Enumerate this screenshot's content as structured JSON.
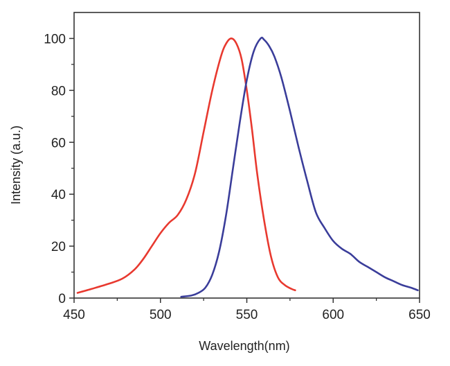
{
  "chart_data": {
    "type": "line",
    "title": "",
    "xlabel": "Wavelength(nm)",
    "ylabel": "Intensity (a.u.)",
    "xlim": [
      450,
      650
    ],
    "ylim": [
      0,
      110
    ],
    "x_ticks": [
      450,
      500,
      550,
      600,
      650
    ],
    "y_ticks": [
      0,
      20,
      40,
      60,
      80,
      100
    ],
    "x_tick_labels": [
      "450",
      "500",
      "550",
      "600",
      "650"
    ],
    "y_tick_labels": [
      "0",
      "20",
      "40",
      "60",
      "80",
      "100"
    ],
    "grid": false,
    "legend": "none",
    "series": [
      {
        "color": "#e8392f",
        "x": [
          452,
          460,
          470,
          478,
          485,
          490,
          495,
          500,
          505,
          510,
          515,
          520,
          525,
          530,
          535,
          538,
          541,
          544,
          547,
          550,
          553,
          556,
          560,
          564,
          568,
          572,
          576,
          578
        ],
        "y": [
          2,
          3.5,
          5.5,
          7.5,
          11,
          15,
          20,
          25,
          29,
          32,
          38,
          48,
          64,
          80,
          93,
          98,
          100,
          98,
          92,
          80,
          65,
          48,
          30,
          16,
          8,
          5,
          3.5,
          3
        ]
      },
      {
        "color": "#3a3d9a",
        "x": [
          512,
          518,
          522,
          526,
          530,
          534,
          538,
          542,
          546,
          550,
          554,
          558,
          560,
          563,
          566,
          570,
          575,
          580,
          585,
          590,
          595,
          600,
          605,
          610,
          615,
          620,
          625,
          630,
          635,
          640,
          645,
          649
        ],
        "y": [
          0.5,
          1,
          2,
          4,
          9,
          18,
          32,
          50,
          68,
          84,
          95,
          100,
          99.5,
          97,
          93,
          85,
          72,
          58,
          45,
          33,
          27,
          22,
          19,
          17,
          14,
          12,
          10,
          8,
          6.5,
          5,
          4,
          3
        ]
      }
    ]
  }
}
